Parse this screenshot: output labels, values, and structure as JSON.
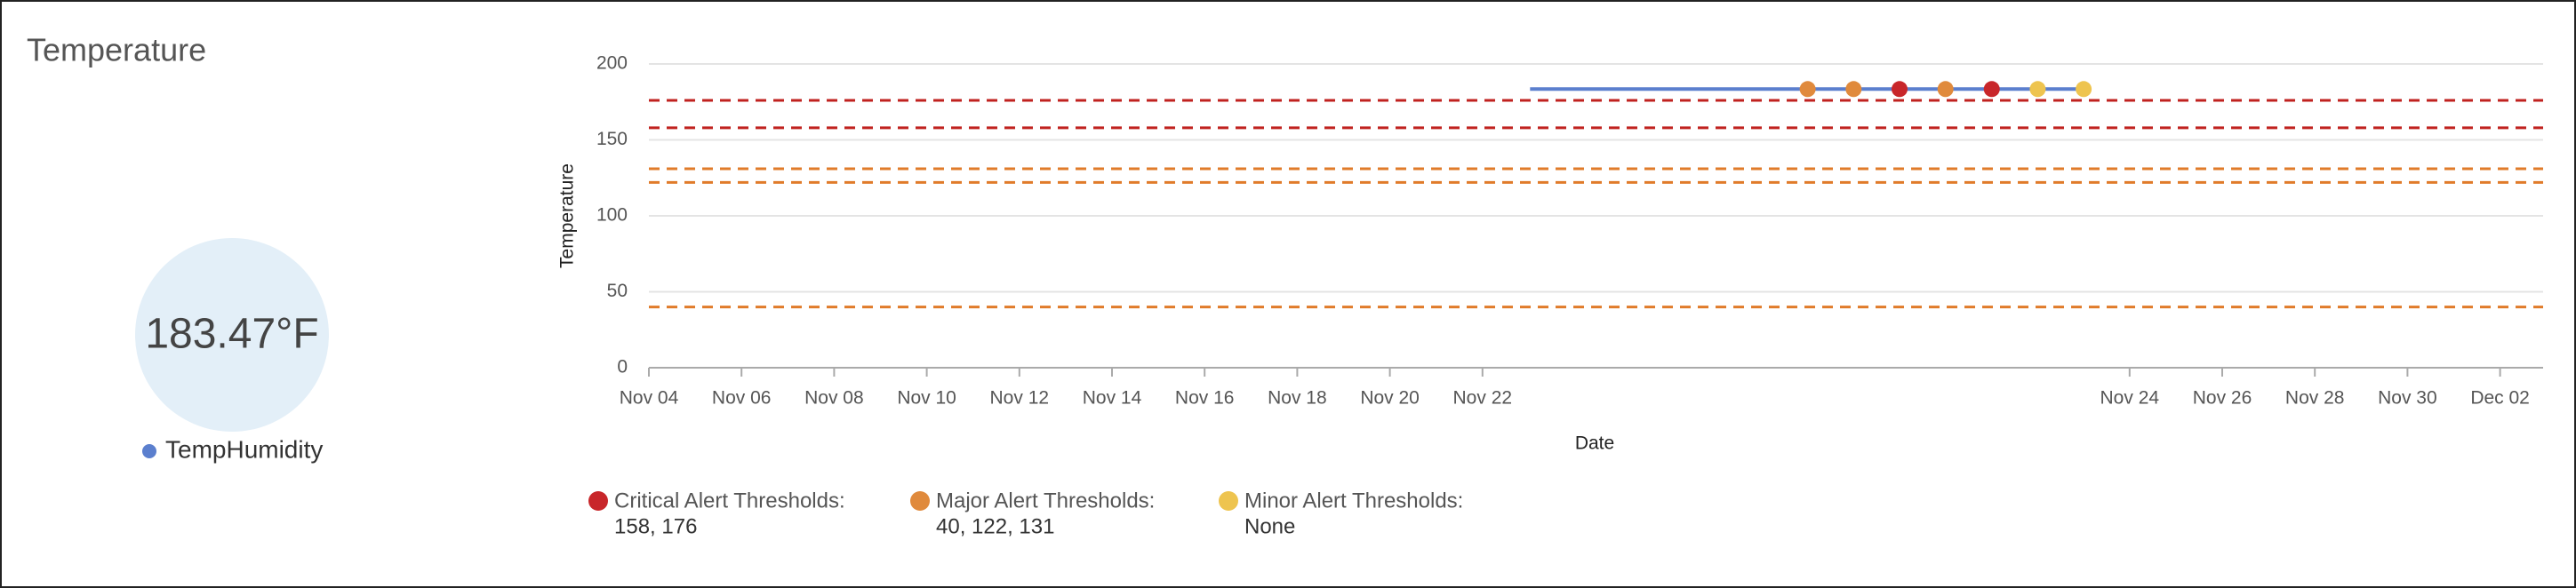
{
  "title": "Temperature",
  "gauge": {
    "value_label": "183.47°F",
    "series_name": "TempHumidity"
  },
  "chart_data": {
    "type": "line",
    "x_label": "Date",
    "y_label": "Temperature",
    "xlim": [
      4,
      33
    ],
    "ylim": [
      0,
      200
    ],
    "xticks": [
      {
        "value": 4,
        "label": "Nov 04"
      },
      {
        "value": 6,
        "label": "Nov 06"
      },
      {
        "value": 8,
        "label": "Nov 08"
      },
      {
        "value": 10,
        "label": "Nov 10"
      },
      {
        "value": 12,
        "label": "Nov 12"
      },
      {
        "value": 14,
        "label": "Nov 14"
      },
      {
        "value": 16,
        "label": "Nov 16"
      },
      {
        "value": 18,
        "label": "Nov 18"
      },
      {
        "value": 20,
        "label": "Nov 20"
      },
      {
        "value": 22,
        "label": "Nov 22"
      },
      {
        "value": 24,
        "label": "Nov 24"
      },
      {
        "value": 26,
        "label": "Nov 26"
      },
      {
        "value": 28,
        "label": "Nov 28"
      },
      {
        "value": 30,
        "label": "Nov 30"
      },
      {
        "value": 32,
        "label": "Dec 02"
      }
    ],
    "yticks": [
      0,
      50,
      100,
      150,
      200
    ],
    "grid": true,
    "series": [
      {
        "name": "TempHumidity",
        "color": "#5b7fce",
        "x": [
          22.147,
          23.005,
          23.147,
          23.289,
          23.431,
          23.574,
          23.716,
          23.858
        ],
        "values": [
          183.47,
          183.47,
          183.47,
          183.47,
          183.47,
          183.47,
          183.47,
          183.47
        ],
        "marker_colors": [
          null,
          "#e08a3c",
          "#e08a3c",
          "#c8262a",
          "#e08a3c",
          "#c8262a",
          "#eec44f",
          "#eec44f"
        ]
      }
    ],
    "thresholds": [
      {
        "label": "Critical Alert Thresholds:",
        "levels_label": "158, 176",
        "color": "#c8262a",
        "line_color": "#c0221f",
        "levels": [
          158,
          176
        ]
      },
      {
        "label": "Major Alert Thresholds:",
        "levels_label": "40, 122, 131",
        "color": "#e08a3c",
        "line_color": "#e07b2a",
        "levels": [
          40,
          122,
          131
        ]
      },
      {
        "label": "Minor Alert Thresholds:",
        "levels_label": "None",
        "color": "#eec44f",
        "line_color": "#eec44f",
        "levels": []
      }
    ]
  }
}
